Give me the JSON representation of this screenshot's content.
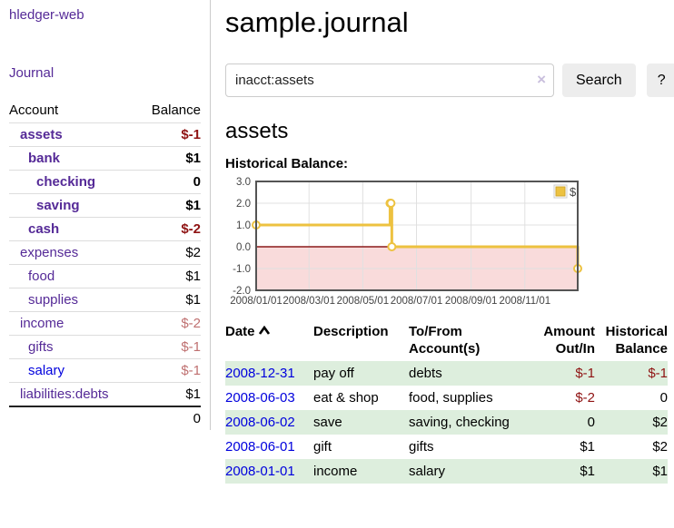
{
  "colors": {
    "link_purple": "#552a97",
    "link_blue": "#0000dd",
    "negative_red": "#8f1313",
    "negative_red_muted": "#bf7070",
    "row_highlight_green": "#ddeedd",
    "button_gray": "#ededed",
    "chart_line_gold": "#edc240",
    "chart_negative_fill": "#f9dbdb",
    "chart_zero_line": "#8b1a1a"
  },
  "sidebar": {
    "brand": "hledger-web",
    "journal_label": "Journal",
    "accounts_table": {
      "account_header": "Account",
      "balance_header": "Balance",
      "rows": [
        {
          "name": "assets",
          "balance": "$-1",
          "depth": 1,
          "bold": true,
          "muted": false,
          "unvisited": false
        },
        {
          "name": "bank",
          "balance": "$1",
          "depth": 2,
          "bold": true,
          "muted": false,
          "unvisited": false
        },
        {
          "name": "checking",
          "balance": "0",
          "depth": 3,
          "bold": true,
          "muted": false,
          "unvisited": false
        },
        {
          "name": "saving",
          "balance": "$1",
          "depth": 3,
          "bold": true,
          "muted": false,
          "unvisited": false
        },
        {
          "name": "cash",
          "balance": "$-2",
          "depth": 2,
          "bold": true,
          "muted": false,
          "unvisited": false
        },
        {
          "name": "expenses",
          "balance": "$2",
          "depth": 1,
          "bold": false,
          "muted": false,
          "unvisited": false
        },
        {
          "name": "food",
          "balance": "$1",
          "depth": 2,
          "bold": false,
          "muted": false,
          "unvisited": false
        },
        {
          "name": "supplies",
          "balance": "$1",
          "depth": 2,
          "bold": false,
          "muted": false,
          "unvisited": false
        },
        {
          "name": "income",
          "balance": "$-2",
          "depth": 1,
          "bold": false,
          "muted": true,
          "unvisited": false
        },
        {
          "name": "gifts",
          "balance": "$-1",
          "depth": 2,
          "bold": false,
          "muted": true,
          "unvisited": false
        },
        {
          "name": "salary",
          "balance": "$-1",
          "depth": 2,
          "bold": false,
          "muted": true,
          "unvisited": true
        },
        {
          "name": "liabilities:debts",
          "balance": "$1",
          "depth": 1,
          "bold": false,
          "muted": false,
          "unvisited": false
        }
      ],
      "total": "0"
    }
  },
  "main": {
    "title": "sample.journal",
    "search": {
      "value": "inacct:assets",
      "clear_icon": "×",
      "search_button": "Search",
      "help_button": "?"
    },
    "account_heading": "assets",
    "chart_label": "Historical Balance:"
  },
  "chart_data": {
    "type": "line",
    "step": true,
    "title": "Historical Balance:",
    "legend": [
      {
        "label": "$",
        "color": "#edc240"
      }
    ],
    "legend_position": "top-right",
    "grid": true,
    "xlim": [
      "2008-01-01",
      "2008-12-31"
    ],
    "ylim": [
      -2,
      3
    ],
    "y_ticks": [
      "3.0",
      "2.0",
      "1.0",
      "0.0",
      "-1.0",
      "-2.0"
    ],
    "x_ticks": [
      {
        "label": "2008/01/01",
        "date": "2008-01-01"
      },
      {
        "label": "2008/03/01",
        "date": "2008-03-01"
      },
      {
        "label": "2008/05/01",
        "date": "2008-05-01"
      },
      {
        "label": "2008/07/01",
        "date": "2008-07-01"
      },
      {
        "label": "2008/09/01",
        "date": "2008-09-01"
      },
      {
        "label": "2008/11/01",
        "date": "2008-11-01"
      }
    ],
    "negative_fill": "#f9dbdb",
    "zero_line_color": "#8b1a1a",
    "series": [
      {
        "name": "$",
        "color": "#edc240",
        "points": [
          {
            "date": "2008-01-01",
            "value": 1
          },
          {
            "date": "2008-06-01",
            "value": 2
          },
          {
            "date": "2008-06-02",
            "value": 2
          },
          {
            "date": "2008-06-03",
            "value": 0
          },
          {
            "date": "2008-12-31",
            "value": -1
          }
        ]
      }
    ]
  },
  "register_table": {
    "headers": {
      "date": "Date",
      "description": "Description",
      "accounts": "To/From Account(s)",
      "amount": "Amount Out/In",
      "balance": "Historical Balance"
    },
    "rows": [
      {
        "date": "2008-12-31",
        "description": "pay off",
        "accounts": "debts",
        "amount": "$-1",
        "balance": "$-1",
        "highlight": true
      },
      {
        "date": "2008-06-03",
        "description": "eat & shop",
        "accounts": "food, supplies",
        "amount": "$-2",
        "balance": "0",
        "highlight": false
      },
      {
        "date": "2008-06-02",
        "description": "save",
        "accounts": "saving, checking",
        "amount": "0",
        "balance": "$2",
        "highlight": true
      },
      {
        "date": "2008-06-01",
        "description": "gift",
        "accounts": "gifts",
        "amount": "$1",
        "balance": "$2",
        "highlight": false
      },
      {
        "date": "2008-01-01",
        "description": "income",
        "accounts": "salary",
        "amount": "$1",
        "balance": "$1",
        "highlight": true
      }
    ]
  }
}
